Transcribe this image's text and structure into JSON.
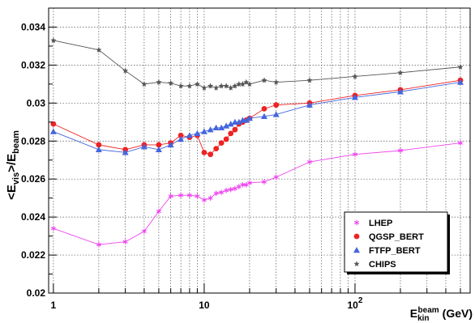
{
  "chart_data": {
    "type": "scatter",
    "title": "",
    "xlabel": {
      "main": "E",
      "sup": "beam",
      "sub": "kin",
      "unit": "(GeV)"
    },
    "ylabel": {
      "lt": "<",
      "e1": "E",
      "sub1": "vis",
      "mid": ">/E",
      "sub2": "beam"
    },
    "x_scale": "log",
    "xlim": [
      0.93,
      580
    ],
    "ylim": [
      0.02,
      0.035
    ],
    "grid": true,
    "legend_position": "bottom-right",
    "x_ticks": [
      {
        "value": 1,
        "label": "1",
        "exp": ""
      },
      {
        "value": 10,
        "label": "10",
        "exp": ""
      },
      {
        "value": 100,
        "label": "10",
        "exp": "2"
      }
    ],
    "y_ticks": [
      {
        "value": 0.02,
        "label": "0.02"
      },
      {
        "value": 0.022,
        "label": "0.022"
      },
      {
        "value": 0.024,
        "label": "0.024"
      },
      {
        "value": 0.026,
        "label": "0.026"
      },
      {
        "value": 0.028,
        "label": "0.028"
      },
      {
        "value": 0.03,
        "label": "0.03"
      },
      {
        "value": 0.032,
        "label": "0.032"
      },
      {
        "value": 0.034,
        "label": "0.034"
      }
    ],
    "series": [
      {
        "name": "LHEP",
        "color": "#ee44ee",
        "marker": "asterisk",
        "connected": true,
        "x": [
          1,
          2,
          3,
          4,
          5,
          6,
          7,
          8,
          9,
          10,
          11,
          12,
          13,
          14,
          15,
          16,
          17,
          18,
          19,
          20,
          25,
          30,
          50,
          100,
          200,
          500
        ],
        "y": [
          0.0234,
          0.02255,
          0.0227,
          0.02325,
          0.0243,
          0.0251,
          0.02515,
          0.02515,
          0.0251,
          0.0249,
          0.025,
          0.02525,
          0.0253,
          0.0254,
          0.02545,
          0.0255,
          0.0256,
          0.0257,
          0.0257,
          0.0258,
          0.02585,
          0.0261,
          0.0269,
          0.0273,
          0.0275,
          0.0279
        ]
      },
      {
        "name": "QGSP_BERT",
        "color": "#ee2222",
        "marker": "circle",
        "connected": true,
        "x": [
          1,
          2,
          3,
          4,
          5,
          6,
          7,
          8,
          9,
          10,
          11,
          12,
          13,
          14,
          15,
          16,
          17,
          18,
          19,
          20,
          25,
          30,
          50,
          100,
          200,
          500
        ],
        "y": [
          0.0289,
          0.0278,
          0.02755,
          0.0278,
          0.0278,
          0.0279,
          0.0283,
          0.0282,
          0.0283,
          0.0274,
          0.0273,
          0.0276,
          0.0279,
          0.0281,
          0.0284,
          0.0286,
          0.0289,
          0.029,
          0.0291,
          0.0292,
          0.0297,
          0.0299,
          0.03,
          0.0304,
          0.0307,
          0.0312
        ]
      },
      {
        "name": "FTFP_BERT",
        "color": "#4466dd",
        "marker": "triangle",
        "connected": true,
        "x": [
          1,
          2,
          3,
          4,
          5,
          6,
          7,
          8,
          9,
          10,
          11,
          12,
          13,
          14,
          15,
          16,
          17,
          18,
          19,
          20,
          25,
          30,
          50,
          100,
          200,
          500
        ],
        "y": [
          0.0285,
          0.02755,
          0.0274,
          0.0277,
          0.02755,
          0.0278,
          0.0281,
          0.0283,
          0.0284,
          0.0285,
          0.0286,
          0.0287,
          0.0287,
          0.0288,
          0.0289,
          0.029,
          0.029,
          0.0291,
          0.0291,
          0.0292,
          0.0293,
          0.0294,
          0.0299,
          0.0303,
          0.0306,
          0.0311
        ]
      },
      {
        "name": "CHIPS",
        "color": "#555555",
        "marker": "star",
        "connected": true,
        "x": [
          1,
          2,
          3,
          4,
          5,
          6,
          7,
          8,
          9,
          10,
          11,
          12,
          13,
          14,
          15,
          16,
          17,
          18,
          19,
          20,
          25,
          30,
          50,
          100,
          200,
          500
        ],
        "y": [
          0.0333,
          0.0328,
          0.0317,
          0.031,
          0.0311,
          0.03105,
          0.0309,
          0.0309,
          0.031,
          0.0308,
          0.0309,
          0.0308,
          0.0309,
          0.0309,
          0.0308,
          0.0309,
          0.031,
          0.031,
          0.0311,
          0.031,
          0.0312,
          0.0311,
          0.0312,
          0.0314,
          0.0316,
          0.0319
        ]
      }
    ]
  }
}
